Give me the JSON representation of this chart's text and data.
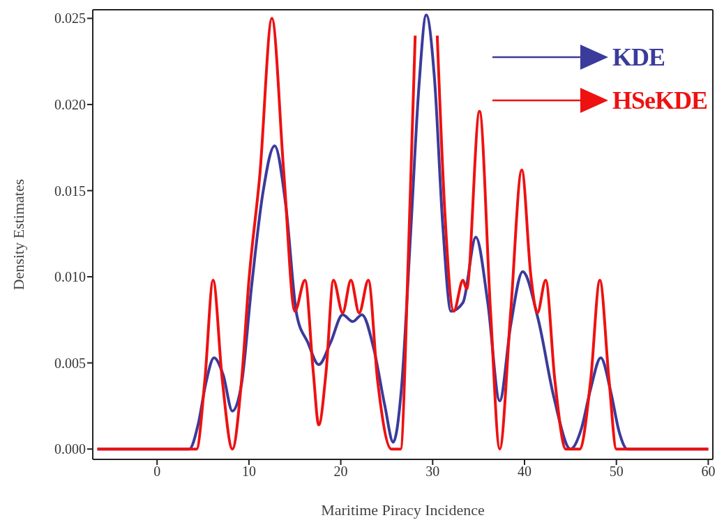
{
  "chart_data": {
    "type": "line",
    "xlabel": "Maritime Piracy Incidence",
    "ylabel": "Density  Estimates",
    "xlim": [
      -7,
      60.5
    ],
    "ylim": [
      -0.0006,
      0.0255
    ],
    "xticks": [
      0,
      10,
      20,
      30,
      40,
      50,
      60
    ],
    "yticks": [
      {
        "value": 0,
        "label": "0.000"
      },
      {
        "value": 0.005,
        "label": "0.005"
      },
      {
        "value": 0.01,
        "label": "0.010"
      },
      {
        "value": 0.015,
        "label": "0.015"
      },
      {
        "value": 0.02,
        "label": "0.020"
      },
      {
        "value": 0.025,
        "label": "0.025"
      }
    ],
    "legend": "top right",
    "marker": "none",
    "line_style": "solid",
    "series": [
      {
        "name": "KDE",
        "color": "#3b3b9b",
        "x": [
          -6.5,
          0,
          3.5,
          4.5,
          5.3,
          6.2,
          7.2,
          8.2,
          9.2,
          10.3,
          11.5,
          12.8,
          14,
          15.2,
          16.4,
          17.6,
          18.9,
          20.2,
          21.3,
          22.3,
          23.6,
          24.8,
          25.7,
          26.6,
          27.6,
          28.5,
          29.3,
          30.2,
          31.1,
          32,
          33.3,
          34.7,
          36,
          37.3,
          38.5,
          39.8,
          41.5,
          43.2,
          45,
          46.2,
          47.2,
          48.3,
          49.4,
          50.3,
          51.2,
          53,
          60
        ],
        "values": [
          0,
          0,
          0,
          0.0015,
          0.0038,
          0.0053,
          0.0043,
          0.0022,
          0.0038,
          0.0095,
          0.0148,
          0.0176,
          0.0142,
          0.0078,
          0.0062,
          0.0049,
          0.0062,
          0.0078,
          0.0074,
          0.0078,
          0.0058,
          0.0025,
          0.0004,
          0.0035,
          0.0125,
          0.021,
          0.0252,
          0.0215,
          0.013,
          0.008,
          0.0085,
          0.0123,
          0.0085,
          0.0028,
          0.0072,
          0.0103,
          0.0075,
          0.003,
          0,
          0.0012,
          0.0035,
          0.0053,
          0.0033,
          0.001,
          0,
          0,
          0
        ]
      },
      {
        "name": "HSeKDE",
        "color": "#ee1111",
        "x": [
          -6.5,
          0,
          4.3,
          5.2,
          6.1,
          7.1,
          8.2,
          9.2,
          10,
          11.2,
          12.5,
          13.8,
          15,
          16.1,
          17,
          17.6,
          18.4,
          19.2,
          20.2,
          21.1,
          22,
          23,
          24,
          25.5,
          26.5,
          27.4,
          28.1,
          28.3,
          29.3,
          30.3,
          30.5,
          31.3,
          32.3,
          33.3,
          33.7,
          35.1,
          36.3,
          37.3,
          38.5,
          39.7,
          40.7,
          41.4,
          42.3,
          43.3,
          44.5,
          46,
          47.2,
          48.2,
          49.2,
          50,
          53,
          60
        ],
        "values": [
          0,
          0,
          0,
          0.004,
          0.0098,
          0.004,
          0,
          0.004,
          0.0098,
          0.016,
          0.025,
          0.016,
          0.008,
          0.0098,
          0.0045,
          0.0014,
          0.0045,
          0.0098,
          0.0079,
          0.0098,
          0.0079,
          0.0098,
          0.004,
          0,
          0,
          0.012,
          0.024,
          null,
          null,
          null,
          0.024,
          0.014,
          0.008,
          0.0098,
          0.0093,
          0.0196,
          0.008,
          0,
          0.008,
          0.0162,
          0.01,
          0.0079,
          0.0098,
          0.004,
          0,
          0,
          0.004,
          0.0098,
          0.004,
          0,
          0,
          0
        ]
      }
    ]
  }
}
